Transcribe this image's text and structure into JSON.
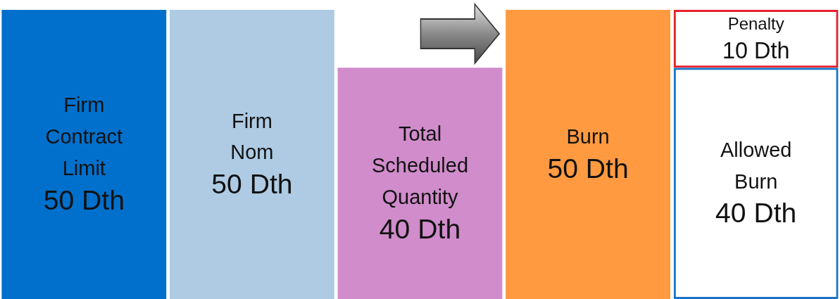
{
  "chart_data": {
    "type": "bar",
    "stacked": true,
    "categories": [
      null,
      null,
      null,
      null,
      null
    ],
    "series": [
      {
        "colors": [
          "#0070cc",
          "#aecbe3",
          "#d08ccb",
          "#ff9a40",
          "#1a73c8"
        ],
        "values": [
          50,
          50,
          40,
          50,
          40
        ],
        "value_labels": [
          "Firm\nContract\nLimit\n50 Dth",
          "Firm\nNom\n50 Dth",
          "Total\nScheduled\nQuantity\n40 Dth",
          "Burn\n50 Dth",
          "Allowed\nBurn\n40 Dth"
        ]
      },
      {
        "colors": [
          null,
          null,
          null,
          null,
          "#e8202a"
        ],
        "values": [
          null,
          null,
          null,
          null,
          10
        ],
        "value_labels": [
          null,
          null,
          null,
          null,
          "Penalty\n10 Dth"
        ]
      }
    ]
  }
}
